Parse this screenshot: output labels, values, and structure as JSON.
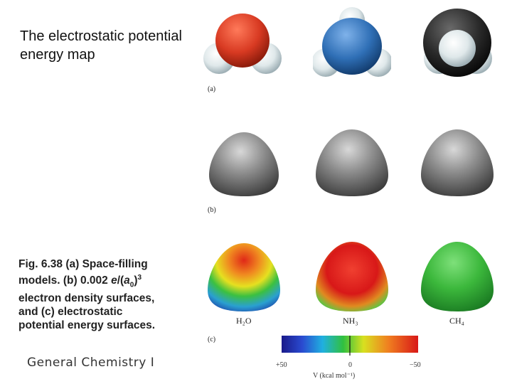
{
  "slide": {
    "title": "The electrostatic potential energy map",
    "caption": {
      "line1": "Fig. 6.38 (a) Space-filling",
      "line2_pre": "models. (b) 0.002 ",
      "line2_var": "e",
      "line2_mid": "/(",
      "line2_var2": "a",
      "line2_sub": "0",
      "line2_post": ")",
      "line2_sup": "3",
      "line3": "electron density surfaces,",
      "line4": "and (c) electrostatic",
      "line5": "potential energy surfaces."
    },
    "footer": "General Chemistry I"
  },
  "figure": {
    "panel_labels": [
      "(a)",
      "(b)",
      "(c)"
    ],
    "molecules": [
      "H₂O",
      "NH₃",
      "CH₄"
    ],
    "scale": {
      "left": "+50",
      "mid": "0",
      "right": "−50",
      "axis_label": "V (kcal mol⁻¹)"
    },
    "colors": {
      "oxygen": "#d83a22",
      "nitrogen": "#2f6fb6",
      "carbon": "#222222",
      "hydrogen": "#e4ecee",
      "density_surface": "#8a8a8a"
    }
  }
}
